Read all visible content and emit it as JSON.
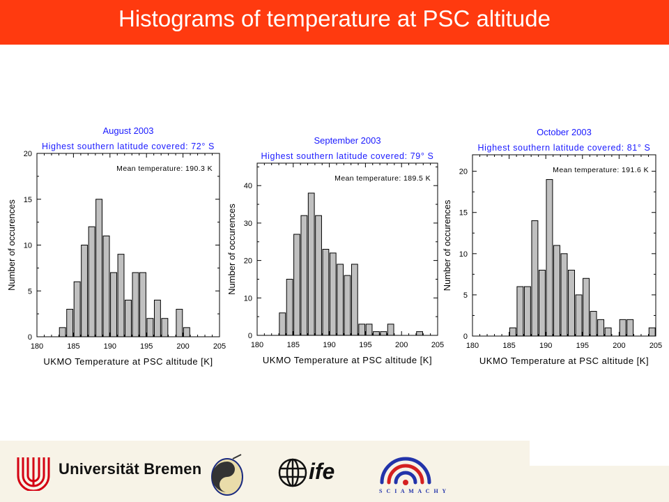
{
  "slide": {
    "title": "Histograms of temperature at PSC altitude"
  },
  "colors": {
    "header": "#ff3a0f",
    "chart_title": "#1a1aff",
    "bar_fill": "#c0c0c0",
    "bar_stroke": "#000000"
  },
  "chart_data": [
    {
      "type": "bar",
      "title": "August 2003",
      "subtitle": "Highest southern latitude covered: 72° S",
      "annotation": "Mean temperature: 190.3 K",
      "xlabel": "UKMO Temperature at PSC altitude [K]",
      "ylabel": "Number of occurences",
      "xlim": [
        180,
        205
      ],
      "ylim": [
        0,
        20
      ],
      "xticks": [
        180,
        185,
        190,
        195,
        200,
        205
      ],
      "yticks": [
        0,
        5,
        10,
        15,
        20
      ],
      "bin_width": 1,
      "x": [
        184,
        185,
        186,
        187,
        188,
        189,
        190,
        191,
        192,
        193,
        194,
        195,
        196,
        197,
        198,
        199,
        200,
        201
      ],
      "values": [
        1,
        3,
        6,
        10,
        12,
        15,
        11,
        7,
        9,
        4,
        7,
        7,
        2,
        4,
        2,
        0,
        3,
        1
      ]
    },
    {
      "type": "bar",
      "title": "September 2003",
      "subtitle": "Highest southern latitude covered: 79° S",
      "annotation": "Mean temperature: 189.5 K",
      "xlabel": "UKMO Temperature at PSC altitude [K]",
      "ylabel": "Number of occurences",
      "xlim": [
        180,
        205
      ],
      "ylim": [
        0,
        46
      ],
      "xticks": [
        180,
        185,
        190,
        195,
        200,
        205
      ],
      "yticks": [
        0,
        10,
        20,
        30,
        40
      ],
      "bin_width": 1,
      "x": [
        184,
        185,
        186,
        187,
        188,
        189,
        190,
        191,
        192,
        193,
        194,
        195,
        196,
        197,
        198,
        199,
        200,
        201,
        202,
        203
      ],
      "values": [
        6,
        15,
        27,
        32,
        38,
        32,
        23,
        22,
        19,
        16,
        19,
        3,
        3,
        1,
        1,
        3,
        0,
        0,
        0,
        1
      ]
    },
    {
      "type": "bar",
      "title": "October 2003",
      "subtitle": "Highest southern latitude covered: 81° S",
      "annotation": "Mean temperature: 191.6 K",
      "xlabel": "UKMO Temperature at PSC altitude [K]",
      "ylabel": "Number of occurences",
      "xlim": [
        180,
        205
      ],
      "ylim": [
        0,
        22
      ],
      "xticks": [
        180,
        185,
        190,
        195,
        200,
        205
      ],
      "yticks": [
        0,
        5,
        10,
        15,
        20
      ],
      "bin_width": 1,
      "x": [
        186,
        187,
        188,
        189,
        190,
        191,
        192,
        193,
        194,
        195,
        196,
        197,
        198,
        199,
        200,
        201,
        202,
        203,
        204,
        205
      ],
      "values": [
        1,
        6,
        6,
        14,
        8,
        19,
        11,
        10,
        8,
        5,
        7,
        3,
        2,
        1,
        0,
        2,
        2,
        0,
        0,
        1
      ]
    }
  ],
  "footer": {
    "university": "Universität Bremen",
    "institute": "ife",
    "instrument": "S C I A M A C H Y"
  }
}
